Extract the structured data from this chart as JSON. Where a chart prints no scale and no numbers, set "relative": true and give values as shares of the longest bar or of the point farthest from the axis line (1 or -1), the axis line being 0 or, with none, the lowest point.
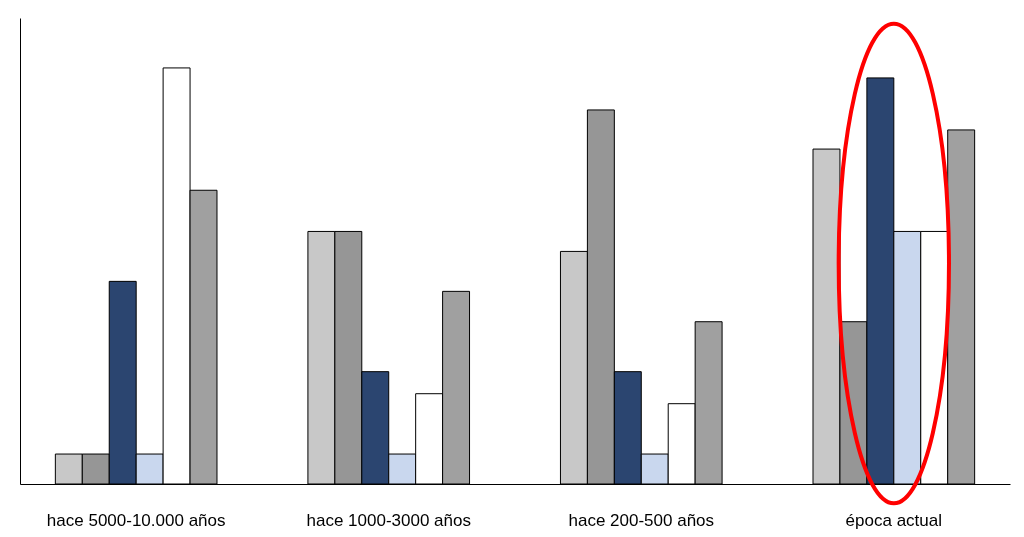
{
  "chart_data": {
    "type": "bar",
    "relative": true,
    "grid": false,
    "categories": [
      "hace 5000-10.000 años",
      "hace 1000-3000 años",
      "hace 200-500 años",
      "época actual"
    ],
    "series": [
      {
        "color": "#c8c8c8",
        "values": [
          0.072,
          0.607,
          0.559,
          0.805
        ]
      },
      {
        "color": "#969696",
        "values": [
          0.072,
          0.607,
          0.899,
          0.39
        ]
      },
      {
        "color": "#2b4570",
        "values": [
          0.487,
          0.27,
          0.27,
          0.976
        ]
      },
      {
        "color": "#c9d7ee",
        "values": [
          0.072,
          0.072,
          0.072,
          0.607
        ]
      },
      {
        "color": "#ffffff",
        "values": [
          1,
          0.217,
          0.193,
          0.607
        ]
      },
      {
        "color": "#a0a0a0",
        "values": [
          0.706,
          0.463,
          0.39,
          0.851
        ]
      }
    ]
  }
}
